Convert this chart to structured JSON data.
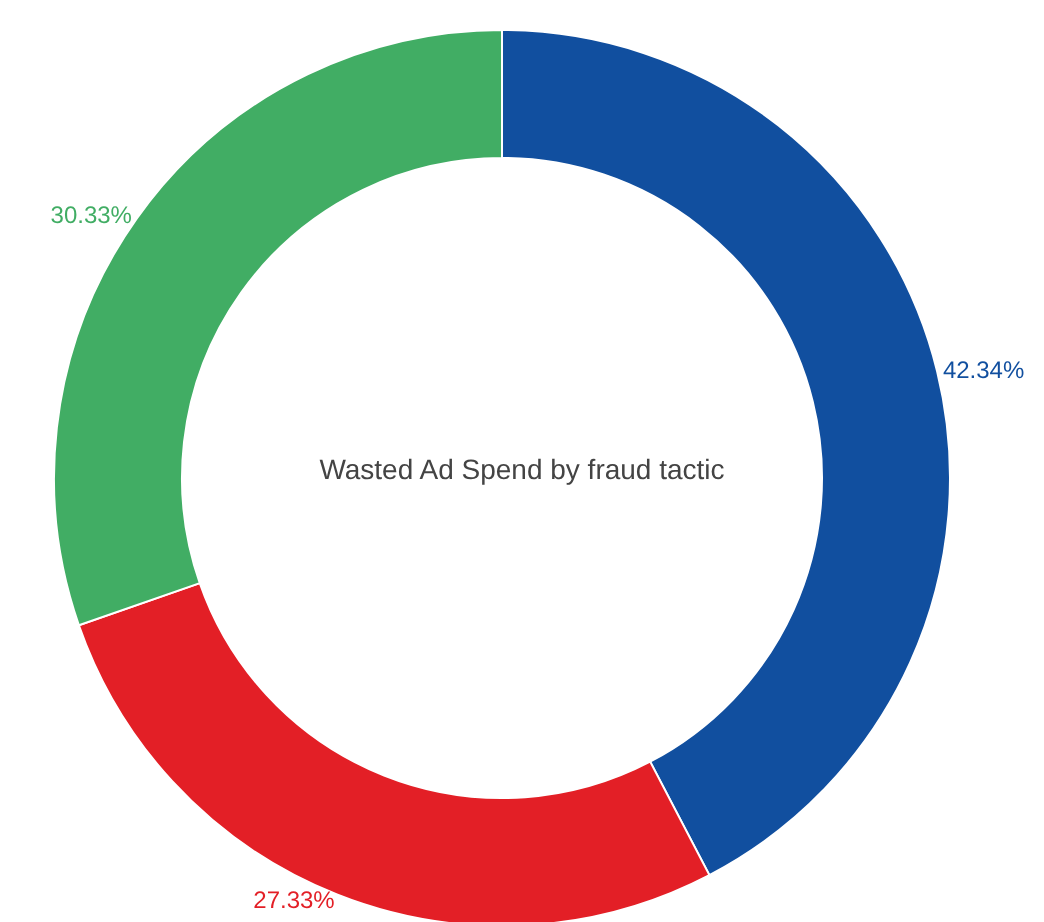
{
  "chart_data": {
    "type": "donut",
    "title": "Wasted Ad Spend by fraud tactic",
    "categories": [
      null,
      null,
      null
    ],
    "values": [
      42.34,
      27.33,
      30.33
    ],
    "value_labels": [
      "42.34%",
      "27.33%",
      "30.33%"
    ],
    "colors": [
      "#114f9f",
      "#e31f26",
      "#41ad64"
    ],
    "legend": false
  }
}
